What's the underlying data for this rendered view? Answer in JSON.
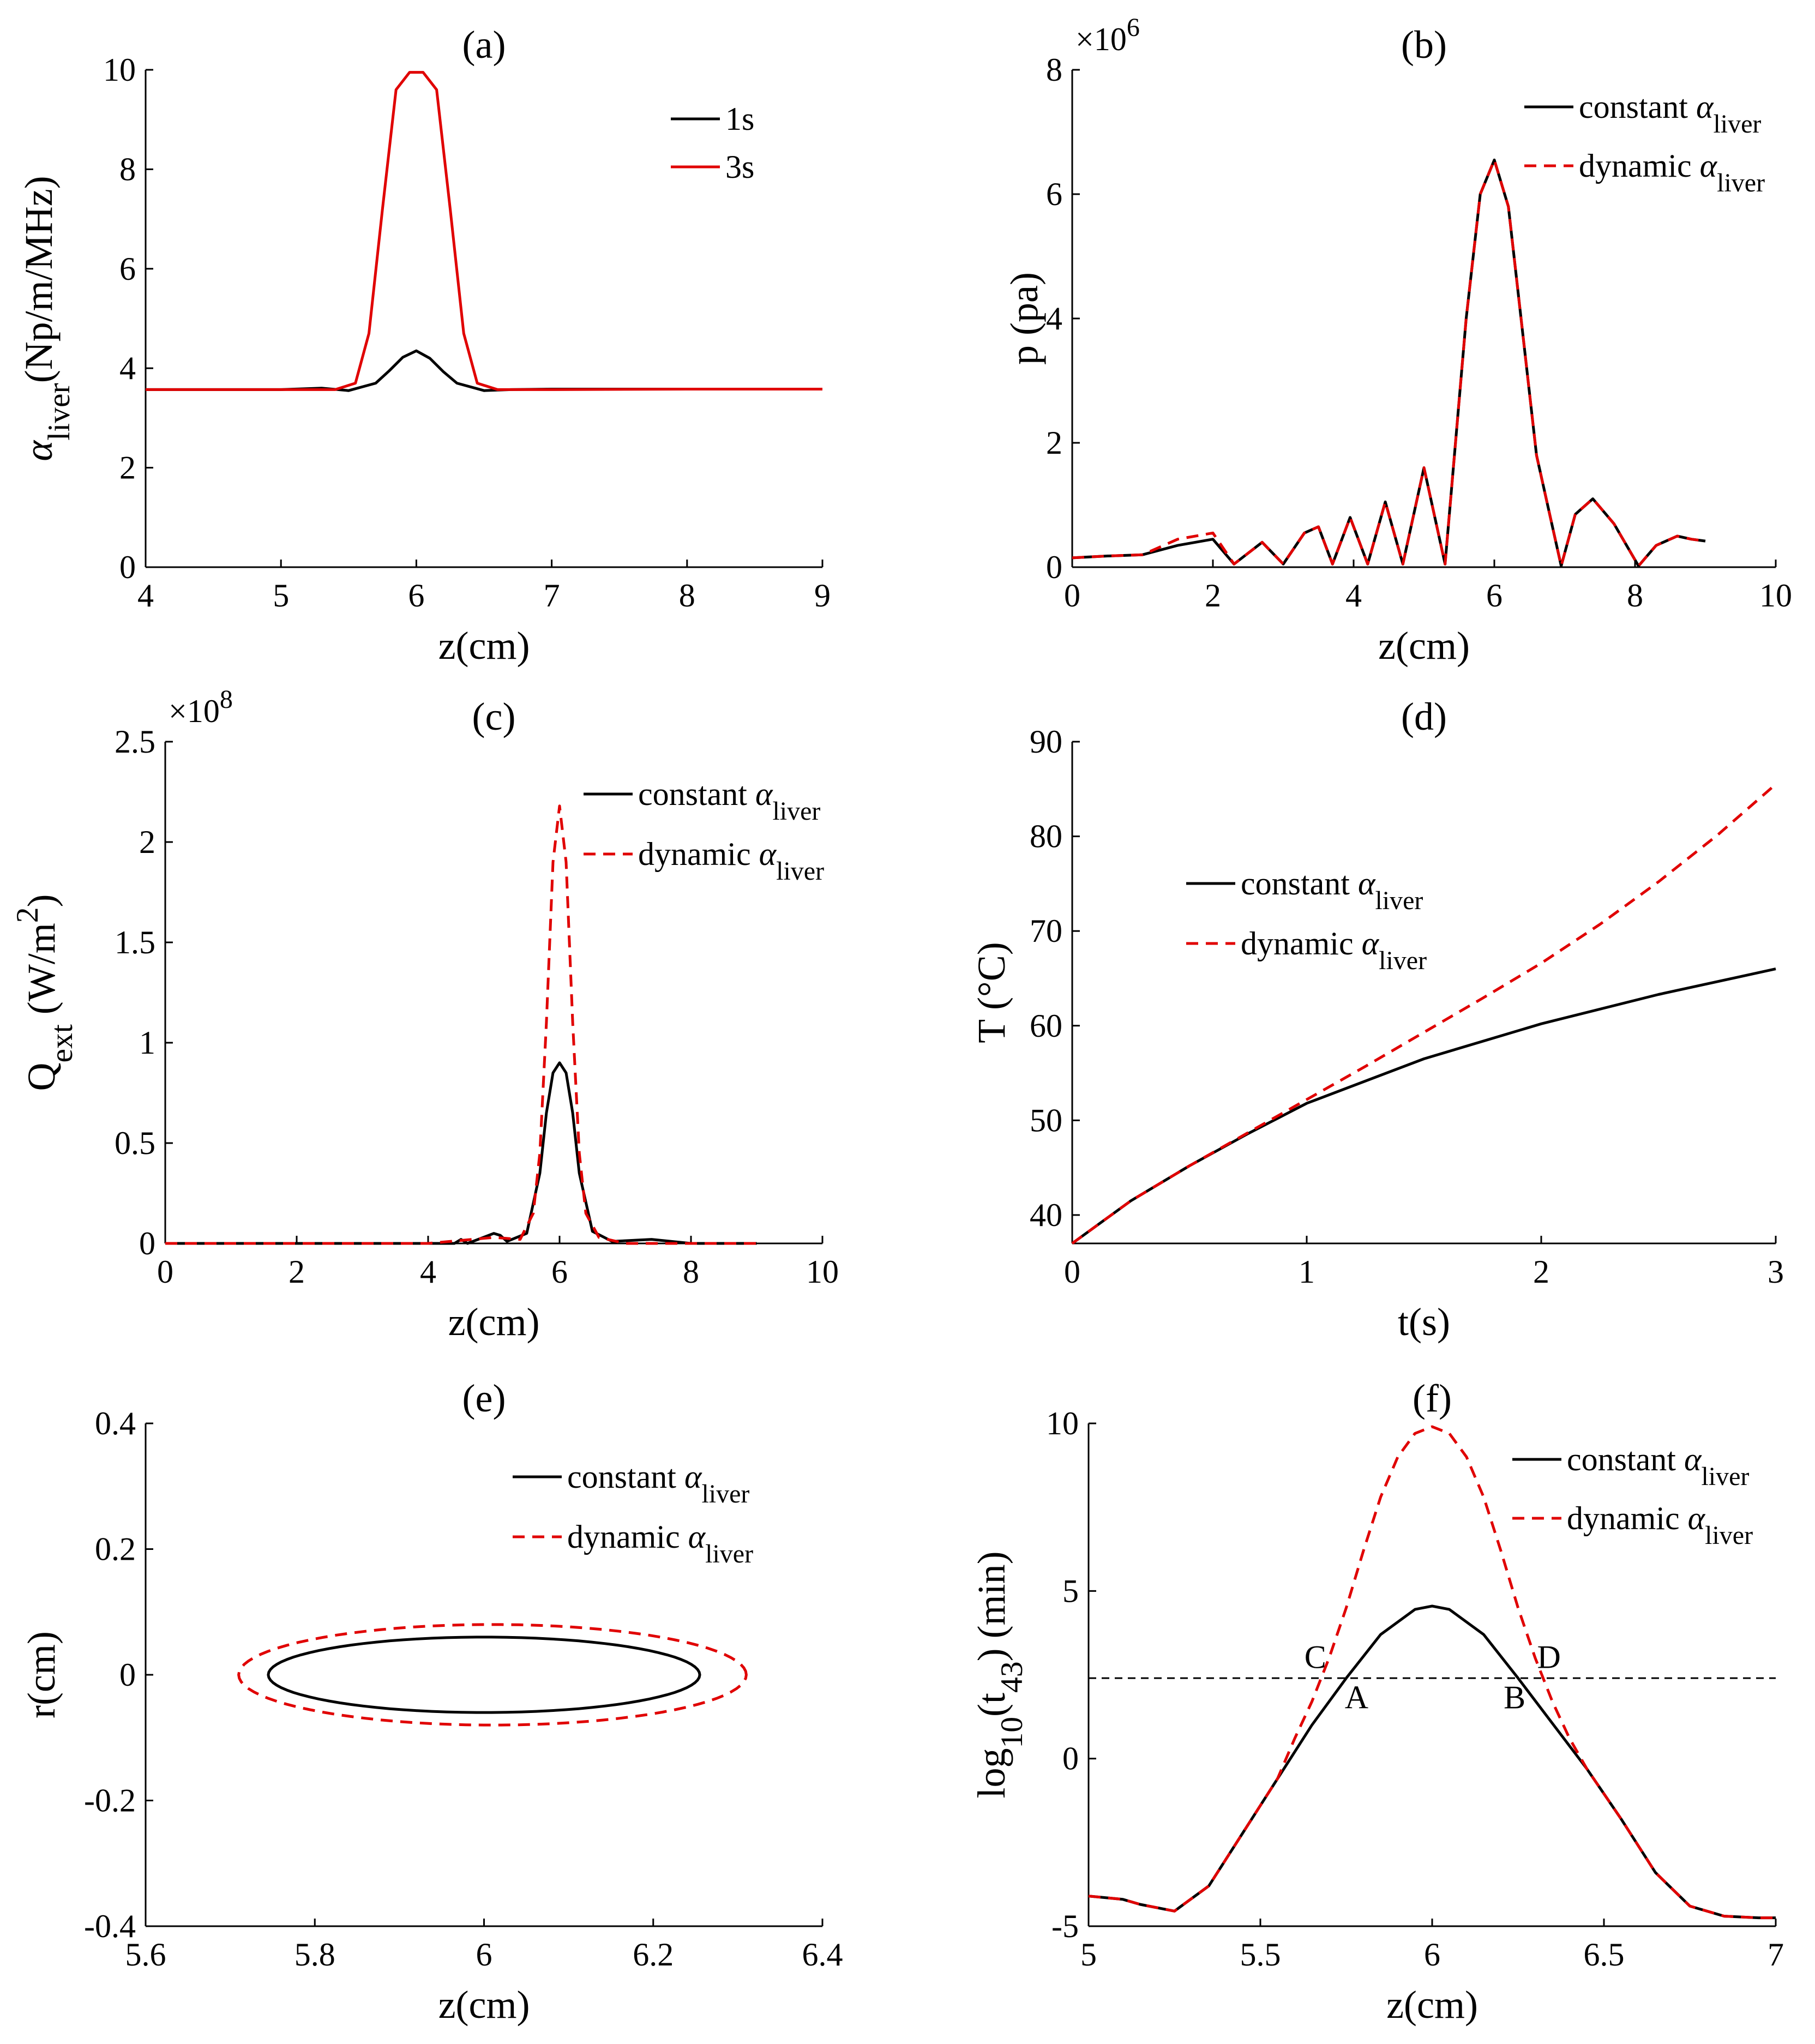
{
  "figure": {
    "panels": [
      {
        "title": "(a)",
        "xlabel": "z(cm)",
        "ylabel": {
          "pre": "α",
          "sub": "liver",
          "post": "(Np/m/MHz)"
        },
        "xticks": [
          4,
          5,
          6,
          7,
          8,
          9
        ],
        "yticks": [
          0,
          2,
          4,
          6,
          8,
          10
        ],
        "multiplier": null,
        "legend": [
          {
            "label": "1s",
            "sub": ""
          },
          {
            "label": "3s",
            "sub": ""
          }
        ]
      },
      {
        "title": "(b)",
        "xlabel": "z(cm)",
        "ylabel": {
          "pre": "p (pa)",
          "sub": "",
          "post": ""
        },
        "xticks": [
          0,
          2,
          4,
          6,
          8,
          10
        ],
        "yticks": [
          0,
          2,
          4,
          6,
          8
        ],
        "multiplier": {
          "base": "×10",
          "exp": "6"
        },
        "legend": [
          {
            "label": "constant α",
            "sub": "liver"
          },
          {
            "label": "dynamic α",
            "sub": "liver"
          }
        ]
      },
      {
        "title": "(c)",
        "xlabel": "z(cm)",
        "ylabel": {
          "pre": "Q",
          "sub": "ext",
          "post": " (W/m",
          "sup": "2",
          "post2": ")"
        },
        "xticks": [
          0,
          2,
          4,
          6,
          8,
          10
        ],
        "yticks": [
          0,
          0.5,
          1,
          1.5,
          2,
          2.5
        ],
        "multiplier": {
          "base": "×10",
          "exp": "8"
        },
        "legend": [
          {
            "label": "constant α",
            "sub": "liver"
          },
          {
            "label": "dynamic α",
            "sub": "liver"
          }
        ]
      },
      {
        "title": "(d)",
        "xlabel": "t(s)",
        "ylabel": {
          "pre": "T (°C)",
          "sub": "",
          "post": ""
        },
        "xticks": [
          0,
          1,
          2,
          3
        ],
        "yticks": [
          40,
          50,
          60,
          70,
          80,
          90
        ],
        "multiplier": null,
        "legend": [
          {
            "label": "constant α",
            "sub": "liver"
          },
          {
            "label": "dynamic α",
            "sub": "liver"
          }
        ]
      },
      {
        "title": "(e)",
        "xlabel": "z(cm)",
        "ylabel": {
          "pre": "r(cm)",
          "sub": "",
          "post": ""
        },
        "xticks": [
          5.6,
          5.8,
          6,
          6.2,
          6.4
        ],
        "yticks": [
          -0.4,
          -0.2,
          0,
          0.2,
          0.4
        ],
        "multiplier": null,
        "legend": [
          {
            "label": "constant α",
            "sub": "liver"
          },
          {
            "label": "dynamic α",
            "sub": "liver"
          }
        ]
      },
      {
        "title": "(f)",
        "xlabel": "z(cm)",
        "ylabel": {
          "pre": "log",
          "sub": "10",
          "post": "(t",
          "sub2": "43",
          "post2": ") (min)"
        },
        "xticks": [
          5,
          5.5,
          6,
          6.5,
          7
        ],
        "yticks": [
          -5,
          0,
          5,
          10
        ],
        "multiplier": null,
        "legend": [
          {
            "label": "constant α",
            "sub": "liver"
          },
          {
            "label": "dynamic α",
            "sub": "liver"
          }
        ],
        "annotations": [
          "A",
          "B",
          "C",
          "D"
        ]
      }
    ]
  },
  "chart_data": [
    {
      "type": "line",
      "title": "(a)",
      "xlabel": "z(cm)",
      "ylabel": "α_liver(Np/m/MHz)",
      "xlim": [
        4,
        9
      ],
      "ylim": [
        0,
        10
      ],
      "series": [
        {
          "name": "1s",
          "color": "#000000",
          "dash": false,
          "x": [
            4,
            5,
            5.3,
            5.5,
            5.7,
            5.8,
            5.9,
            6.0,
            6.1,
            6.2,
            6.3,
            6.5,
            6.7,
            7,
            8,
            9
          ],
          "y": [
            3.57,
            3.57,
            3.6,
            3.55,
            3.7,
            3.95,
            4.22,
            4.35,
            4.2,
            3.93,
            3.7,
            3.55,
            3.57,
            3.58,
            3.58,
            3.58
          ]
        },
        {
          "name": "3s",
          "color": "#e00000",
          "dash": false,
          "x": [
            4,
            5,
            5.4,
            5.55,
            5.65,
            5.75,
            5.85,
            5.95,
            6.05,
            6.15,
            6.25,
            6.35,
            6.45,
            6.6,
            7,
            8,
            9
          ],
          "y": [
            3.57,
            3.57,
            3.57,
            3.7,
            4.7,
            7.2,
            9.6,
            9.95,
            9.95,
            9.6,
            7.2,
            4.7,
            3.7,
            3.57,
            3.57,
            3.58,
            3.58
          ]
        }
      ]
    },
    {
      "type": "line",
      "title": "(b)",
      "xlabel": "z(cm)",
      "ylabel": "p (pa)",
      "ylabel_multiplier": 1000000,
      "xlim": [
        0,
        10
      ],
      "ylim": [
        0,
        8
      ],
      "series": [
        {
          "name": "constant α_liver",
          "color": "#000000",
          "dash": false,
          "x": [
            0,
            0.5,
            1.0,
            1.5,
            2.0,
            2.3,
            2.7,
            3.0,
            3.3,
            3.5,
            3.7,
            3.95,
            4.2,
            4.45,
            4.7,
            5.0,
            5.3,
            5.6,
            5.8,
            6.0,
            6.2,
            6.4,
            6.6,
            6.95,
            7.15,
            7.4,
            7.7,
            8.05,
            8.3,
            8.6,
            8.8,
            9.0
          ],
          "y": [
            0.15,
            0.18,
            0.2,
            0.35,
            0.45,
            0.05,
            0.4,
            0.05,
            0.55,
            0.65,
            0.05,
            0.8,
            0.05,
            1.05,
            0.05,
            1.6,
            0.05,
            4.0,
            6.0,
            6.55,
            5.8,
            3.8,
            1.8,
            0.02,
            0.85,
            1.1,
            0.7,
            0.02,
            0.35,
            0.5,
            0.45,
            0.42
          ]
        },
        {
          "name": "dynamic α_liver",
          "color": "#e00000",
          "dash": true,
          "x": [
            0,
            0.5,
            1.0,
            1.5,
            2.0,
            2.3,
            2.7,
            3.0,
            3.3,
            3.5,
            3.7,
            3.95,
            4.2,
            4.45,
            4.7,
            5.0,
            5.3,
            5.6,
            5.8,
            6.0,
            6.2,
            6.4,
            6.6,
            6.95,
            7.15,
            7.4,
            7.7,
            8.05,
            8.3,
            8.6,
            8.8,
            9.0
          ],
          "y": [
            0.15,
            0.18,
            0.2,
            0.45,
            0.55,
            0.05,
            0.4,
            0.05,
            0.55,
            0.65,
            0.05,
            0.8,
            0.05,
            1.05,
            0.05,
            1.6,
            0.05,
            4.0,
            6.0,
            6.55,
            5.8,
            3.8,
            1.8,
            0.02,
            0.85,
            1.1,
            0.7,
            0.02,
            0.35,
            0.5,
            0.45,
            0.42
          ]
        }
      ]
    },
    {
      "type": "line",
      "title": "(c)",
      "xlabel": "z(cm)",
      "ylabel": "Q_ext (W/m^2)",
      "ylabel_multiplier": 100000000,
      "xlim": [
        0,
        10
      ],
      "ylim": [
        0,
        2.5
      ],
      "series": [
        {
          "name": "constant α_liver",
          "color": "#000000",
          "dash": false,
          "x": [
            0,
            4,
            4.4,
            4.5,
            4.6,
            5.0,
            5.1,
            5.2,
            5.5,
            5.7,
            5.8,
            5.9,
            6.0,
            6.1,
            6.2,
            6.3,
            6.5,
            6.8,
            7.4,
            8,
            9
          ],
          "y": [
            0,
            0,
            0,
            0.02,
            0,
            0.05,
            0.04,
            0.01,
            0.05,
            0.35,
            0.65,
            0.85,
            0.9,
            0.85,
            0.65,
            0.35,
            0.06,
            0.01,
            0.02,
            0,
            0
          ]
        },
        {
          "name": "dynamic α_liver",
          "color": "#e00000",
          "dash": true,
          "x": [
            0,
            4,
            5,
            5.4,
            5.6,
            5.7,
            5.8,
            5.9,
            6.0,
            6.1,
            6.2,
            6.3,
            6.4,
            6.6,
            7,
            9
          ],
          "y": [
            0,
            0,
            0.03,
            0.02,
            0.15,
            0.45,
            1.1,
            1.9,
            2.18,
            1.9,
            1.1,
            0.45,
            0.15,
            0.03,
            0,
            0
          ]
        }
      ]
    },
    {
      "type": "line",
      "title": "(d)",
      "xlabel": "t(s)",
      "ylabel": "T (°C)",
      "xlim": [
        0,
        3
      ],
      "ylim": [
        37,
        90
      ],
      "series": [
        {
          "name": "constant α_liver",
          "color": "#000000",
          "dash": false,
          "x": [
            0,
            0.25,
            0.5,
            0.75,
            1.0,
            1.5,
            2.0,
            2.5,
            3.0
          ],
          "y": [
            37,
            41.5,
            45.2,
            48.6,
            51.8,
            56.5,
            60.2,
            63.3,
            66
          ]
        },
        {
          "name": "dynamic α_liver",
          "color": "#e00000",
          "dash": true,
          "x": [
            0,
            0.25,
            0.5,
            0.75,
            1.0,
            1.25,
            1.5,
            1.75,
            2.0,
            2.25,
            2.5,
            2.75,
            3.0
          ],
          "y": [
            37,
            41.5,
            45.2,
            48.7,
            52.2,
            55.7,
            59.3,
            62.9,
            66.6,
            70.7,
            75.2,
            80.1,
            85.5
          ]
        }
      ]
    },
    {
      "type": "line",
      "title": "(e)",
      "xlabel": "z(cm)",
      "ylabel": "r(cm)",
      "xlim": [
        5.6,
        6.4
      ],
      "ylim": [
        -0.4,
        0.4
      ],
      "series": [
        {
          "name": "constant α_liver",
          "color": "#000000",
          "dash": false,
          "shape": "ellipse",
          "center": [
            6.0,
            0
          ],
          "semi_axes": [
            0.255,
            0.06
          ]
        },
        {
          "name": "dynamic α_liver",
          "color": "#e00000",
          "dash": true,
          "shape": "ellipse",
          "center": [
            6.01,
            0
          ],
          "semi_axes": [
            0.3,
            0.08
          ]
        }
      ]
    },
    {
      "type": "line",
      "title": "(f)",
      "xlabel": "z(cm)",
      "ylabel": "log10(t43) (min)",
      "xlim": [
        5,
        7
      ],
      "ylim": [
        -5,
        10
      ],
      "threshold": 2.4,
      "series": [
        {
          "name": "constant α_liver",
          "color": "#000000",
          "dash": false,
          "x": [
            5.0,
            5.1,
            5.15,
            5.25,
            5.35,
            5.45,
            5.55,
            5.65,
            5.75,
            5.85,
            5.95,
            6.0,
            6.05,
            6.15,
            6.25,
            6.35,
            6.45,
            6.55,
            6.65,
            6.75,
            6.85,
            6.95,
            7.0
          ],
          "y": [
            -4.1,
            -4.2,
            -4.35,
            -4.55,
            -3.8,
            -2.2,
            -0.6,
            1.0,
            2.4,
            3.7,
            4.45,
            4.55,
            4.45,
            3.7,
            2.4,
            1.05,
            -0.3,
            -1.8,
            -3.4,
            -4.4,
            -4.7,
            -4.75,
            -4.75
          ]
        },
        {
          "name": "dynamic α_liver",
          "color": "#e00000",
          "dash": true,
          "x": [
            5.0,
            5.1,
            5.15,
            5.25,
            5.35,
            5.45,
            5.55,
            5.6,
            5.65,
            5.7,
            5.75,
            5.8,
            5.85,
            5.9,
            5.95,
            6.0,
            6.05,
            6.1,
            6.15,
            6.2,
            6.25,
            6.3,
            6.35,
            6.4,
            6.45,
            6.55,
            6.65,
            6.75,
            6.85,
            6.95,
            7.0
          ],
          "y": [
            -4.1,
            -4.2,
            -4.35,
            -4.55,
            -3.8,
            -2.2,
            -0.6,
            0.6,
            1.7,
            3.0,
            4.5,
            6.2,
            7.8,
            9.0,
            9.7,
            9.9,
            9.7,
            9.0,
            7.8,
            6.2,
            4.5,
            3.0,
            1.7,
            0.6,
            -0.3,
            -1.8,
            -3.4,
            -4.4,
            -4.7,
            -4.75,
            -4.75
          ]
        }
      ]
    }
  ]
}
